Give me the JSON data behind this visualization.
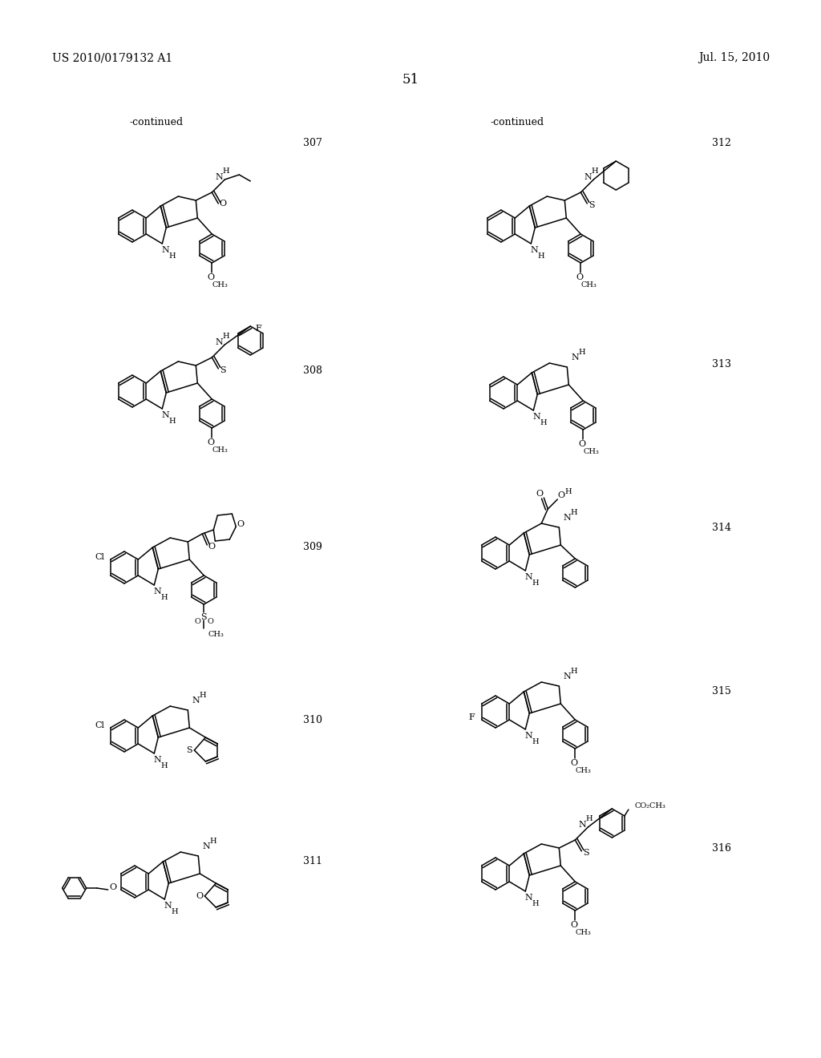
{
  "background_color": "#ffffff",
  "page_number": "51",
  "left_header": "US 2010/0179132 A1",
  "right_header": "Jul. 15, 2010",
  "line_color": "#000000"
}
